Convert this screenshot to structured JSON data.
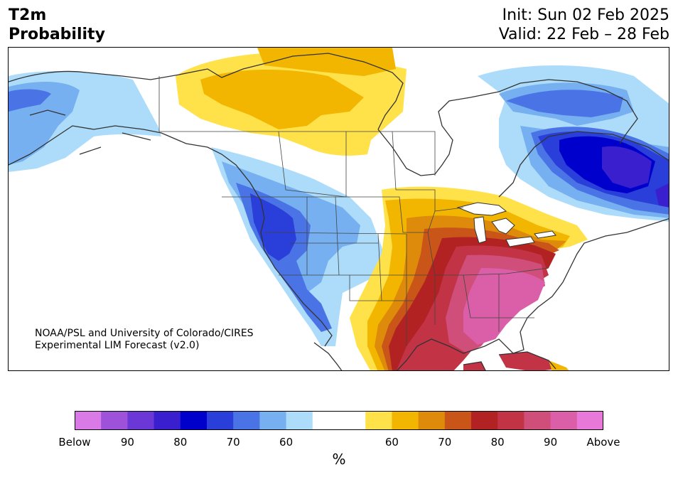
{
  "header": {
    "title_line1": "T2m",
    "title_line2": "Probability",
    "init": "Init: Sun 02 Feb 2025",
    "valid": "Valid: 22 Feb – 28 Feb"
  },
  "credit": {
    "line1": "NOAA/PSL and University of Colorado/CIRES",
    "line2": "Experimental LIM Forecast (v2.0)"
  },
  "colorbar": {
    "colors": [
      "#d97ae6",
      "#9d52d9",
      "#6b37d6",
      "#3a1fcf",
      "#0000cc",
      "#2a3ed9",
      "#4a74e6",
      "#76b0f0",
      "#addcfb",
      "#ffffff",
      "#ffffff",
      "#ffe24a",
      "#f2b600",
      "#de8a0b",
      "#c95618",
      "#b22222",
      "#c23346",
      "#d04e7a",
      "#db5fa8",
      "#e879d9"
    ],
    "ticks": [
      "Below",
      "90",
      "80",
      "70",
      "60",
      "60",
      "70",
      "80",
      "90",
      "Above"
    ],
    "unit": "%"
  },
  "colors": {
    "land_outline": "#333333",
    "blue_light": "#addcfb",
    "blue_mid": "#76b0f0",
    "blue": "#4a74e6",
    "blue_dark": "#2a3ed9",
    "blue_deep": "#0000cc",
    "indigo": "#3a1fcf",
    "yellow": "#ffe24a",
    "gold": "#f2b600",
    "orange": "#de8a0b",
    "rust": "#c95618",
    "red": "#b22222",
    "crimson": "#c23346",
    "rose": "#d04e7a",
    "pink": "#db5fa8"
  }
}
